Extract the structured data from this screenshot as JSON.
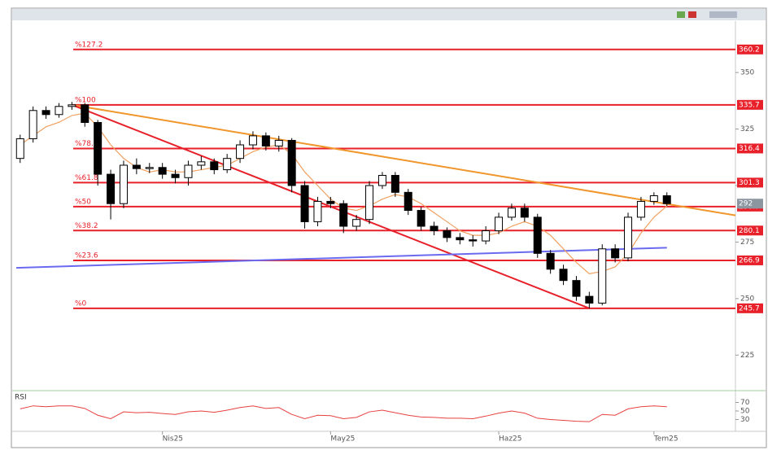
{
  "chart_data": {
    "type": "candlestick",
    "categories": [
      null,
      null,
      null,
      null,
      null,
      null,
      null,
      null,
      null,
      null,
      null,
      "Nis25",
      null,
      null,
      null,
      null,
      null,
      null,
      null,
      null,
      null,
      null,
      null,
      null,
      "May25",
      null,
      null,
      null,
      null,
      null,
      null,
      null,
      null,
      null,
      null,
      null,
      null,
      "Haz25",
      null,
      null,
      null,
      null,
      null,
      null,
      null,
      null,
      null,
      null,
      null,
      "Tem25",
      null
    ],
    "open": [
      312,
      320.7,
      333.2,
      331.4,
      335.0,
      335.7,
      327.9,
      305.0,
      292.0,
      309.0,
      307.5,
      308.0,
      305.0,
      303.5,
      309.0,
      310.5,
      307.0,
      312.0,
      318.0,
      322.0,
      317.5,
      320.0,
      300.0,
      284.0,
      293.0,
      292.0,
      282.0,
      285.0,
      300.0,
      304.5,
      297.0,
      289.0,
      282.0,
      280.0,
      277.0,
      276.0,
      275.5,
      280.0,
      286.0,
      290.0,
      286.0,
      270.0,
      263.0,
      258.0,
      251.0,
      248.0,
      272.0,
      268.0,
      286.0,
      293.0,
      295.5
    ],
    "high": [
      322.5,
      335,
      335,
      336.5,
      337,
      336.5,
      329,
      307,
      311,
      312,
      310,
      310,
      307,
      311,
      313,
      312,
      314,
      320,
      324,
      323.5,
      322,
      321,
      302,
      295,
      295,
      293.5,
      287,
      302,
      306,
      306,
      298.5,
      290.5,
      284,
      281.5,
      279,
      278,
      282,
      288,
      292,
      292,
      287.5,
      271.5,
      265,
      260,
      253,
      274,
      274,
      288,
      295,
      297,
      297
    ],
    "low": [
      310,
      319,
      329.5,
      330,
      333.5,
      326,
      300,
      285,
      290,
      305,
      305.5,
      303,
      301,
      300,
      307,
      305,
      305.5,
      310,
      316,
      315.5,
      315,
      297,
      281,
      282,
      290,
      279,
      280,
      283,
      298.5,
      295,
      287,
      280,
      278,
      275,
      274,
      273,
      274,
      278.5,
      284.5,
      284,
      268,
      261,
      256,
      249,
      245.7,
      247,
      266,
      266.5,
      284.5,
      291.5,
      291
    ],
    "close": [
      320.7,
      333.2,
      331.4,
      335.0,
      335.7,
      327.9,
      305.0,
      292.0,
      309.0,
      307.5,
      308.0,
      305.0,
      303.5,
      309.0,
      310.5,
      307.0,
      312.0,
      318.0,
      322.0,
      317.5,
      320.0,
      300.0,
      284.0,
      293.0,
      292.0,
      282.0,
      285.0,
      300.0,
      304.5,
      297.0,
      289.0,
      282.0,
      280.0,
      277.0,
      276.0,
      275.5,
      280.0,
      286.0,
      290.0,
      286.0,
      270.0,
      263.0,
      258.0,
      251.0,
      248.0,
      272.0,
      268.0,
      286.0,
      293.0,
      295.5,
      292.0
    ],
    "ma": {
      "color": "#f0a060",
      "values": [
        318,
        322,
        326,
        328,
        331,
        332,
        326,
        318,
        312,
        308,
        306,
        307,
        306,
        306,
        307,
        308,
        309,
        312,
        315,
        317,
        318,
        314,
        306,
        300,
        294,
        290,
        289,
        291,
        294,
        296,
        295,
        292,
        288,
        284,
        280,
        278,
        278,
        279,
        282,
        284,
        282,
        278,
        272,
        266,
        261,
        262,
        264,
        270,
        279,
        286,
        291
      ]
    },
    "xlim": [
      -0.3,
      55.3
    ],
    "ylim": [
      210,
      372
    ],
    "yticks": [
      225,
      250,
      275,
      300,
      325,
      350
    ],
    "levels": [
      {
        "label": "%127.2",
        "value": 360.2
      },
      {
        "label": "%100",
        "value": 335.7
      },
      {
        "label": "%78.6",
        "value": 316.4
      },
      {
        "label": "%61.8",
        "value": 301.3
      },
      {
        "label": "%50",
        "value": 290.7
      },
      {
        "label": "%38.2",
        "value": 280.1
      },
      {
        "label": "%23.6",
        "value": 266.9
      },
      {
        "label": "%0",
        "value": 245.7
      }
    ],
    "level_color": "#e8202a",
    "lines": [
      {
        "color": "#f0962a",
        "x": [
          4,
          55.3
        ],
        "values": [
          335.7,
          286.8
        ]
      },
      {
        "color": "#e8202a",
        "x": [
          4,
          44
        ],
        "values": [
          335.7,
          245.7
        ]
      },
      {
        "color": "#6a6af0",
        "x": [
          -0.3,
          50
        ],
        "values": [
          263.6,
          272.5
        ]
      }
    ],
    "rsi": {
      "name": "RSI",
      "color": "#e84040",
      "values": [
        55,
        62,
        60,
        62,
        62,
        56,
        40,
        32,
        48,
        46,
        47,
        44,
        42,
        48,
        50,
        47,
        52,
        58,
        62,
        56,
        58,
        42,
        32,
        40,
        39,
        32,
        35,
        48,
        52,
        46,
        40,
        36,
        35,
        33,
        33,
        32,
        38,
        45,
        50,
        45,
        33,
        30,
        28,
        26,
        25,
        42,
        40,
        55,
        60,
        62,
        60
      ],
      "ylim": [
        10,
        90
      ],
      "yticks": [
        30,
        50,
        70
      ]
    }
  }
}
